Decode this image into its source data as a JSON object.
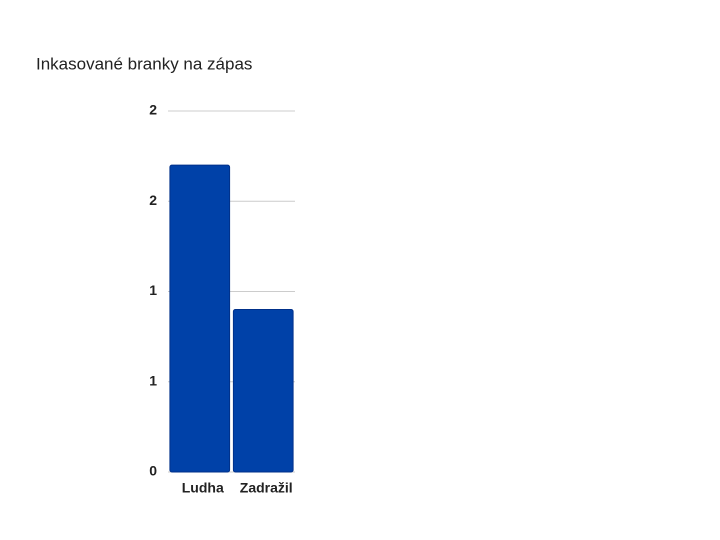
{
  "chart_data": {
    "type": "bar",
    "title": "Inkasované branky na zápas",
    "categories": [
      "Ludha",
      "Zadražil"
    ],
    "values": [
      1.7,
      0.9
    ],
    "color": "#0041a8",
    "ylim": [
      0,
      2
    ],
    "yticks": [
      0,
      {
        "value": 0.5,
        "label": "1"
      },
      1,
      {
        "value": 1.5,
        "label": "2"
      },
      2
    ],
    "grid": true
  }
}
